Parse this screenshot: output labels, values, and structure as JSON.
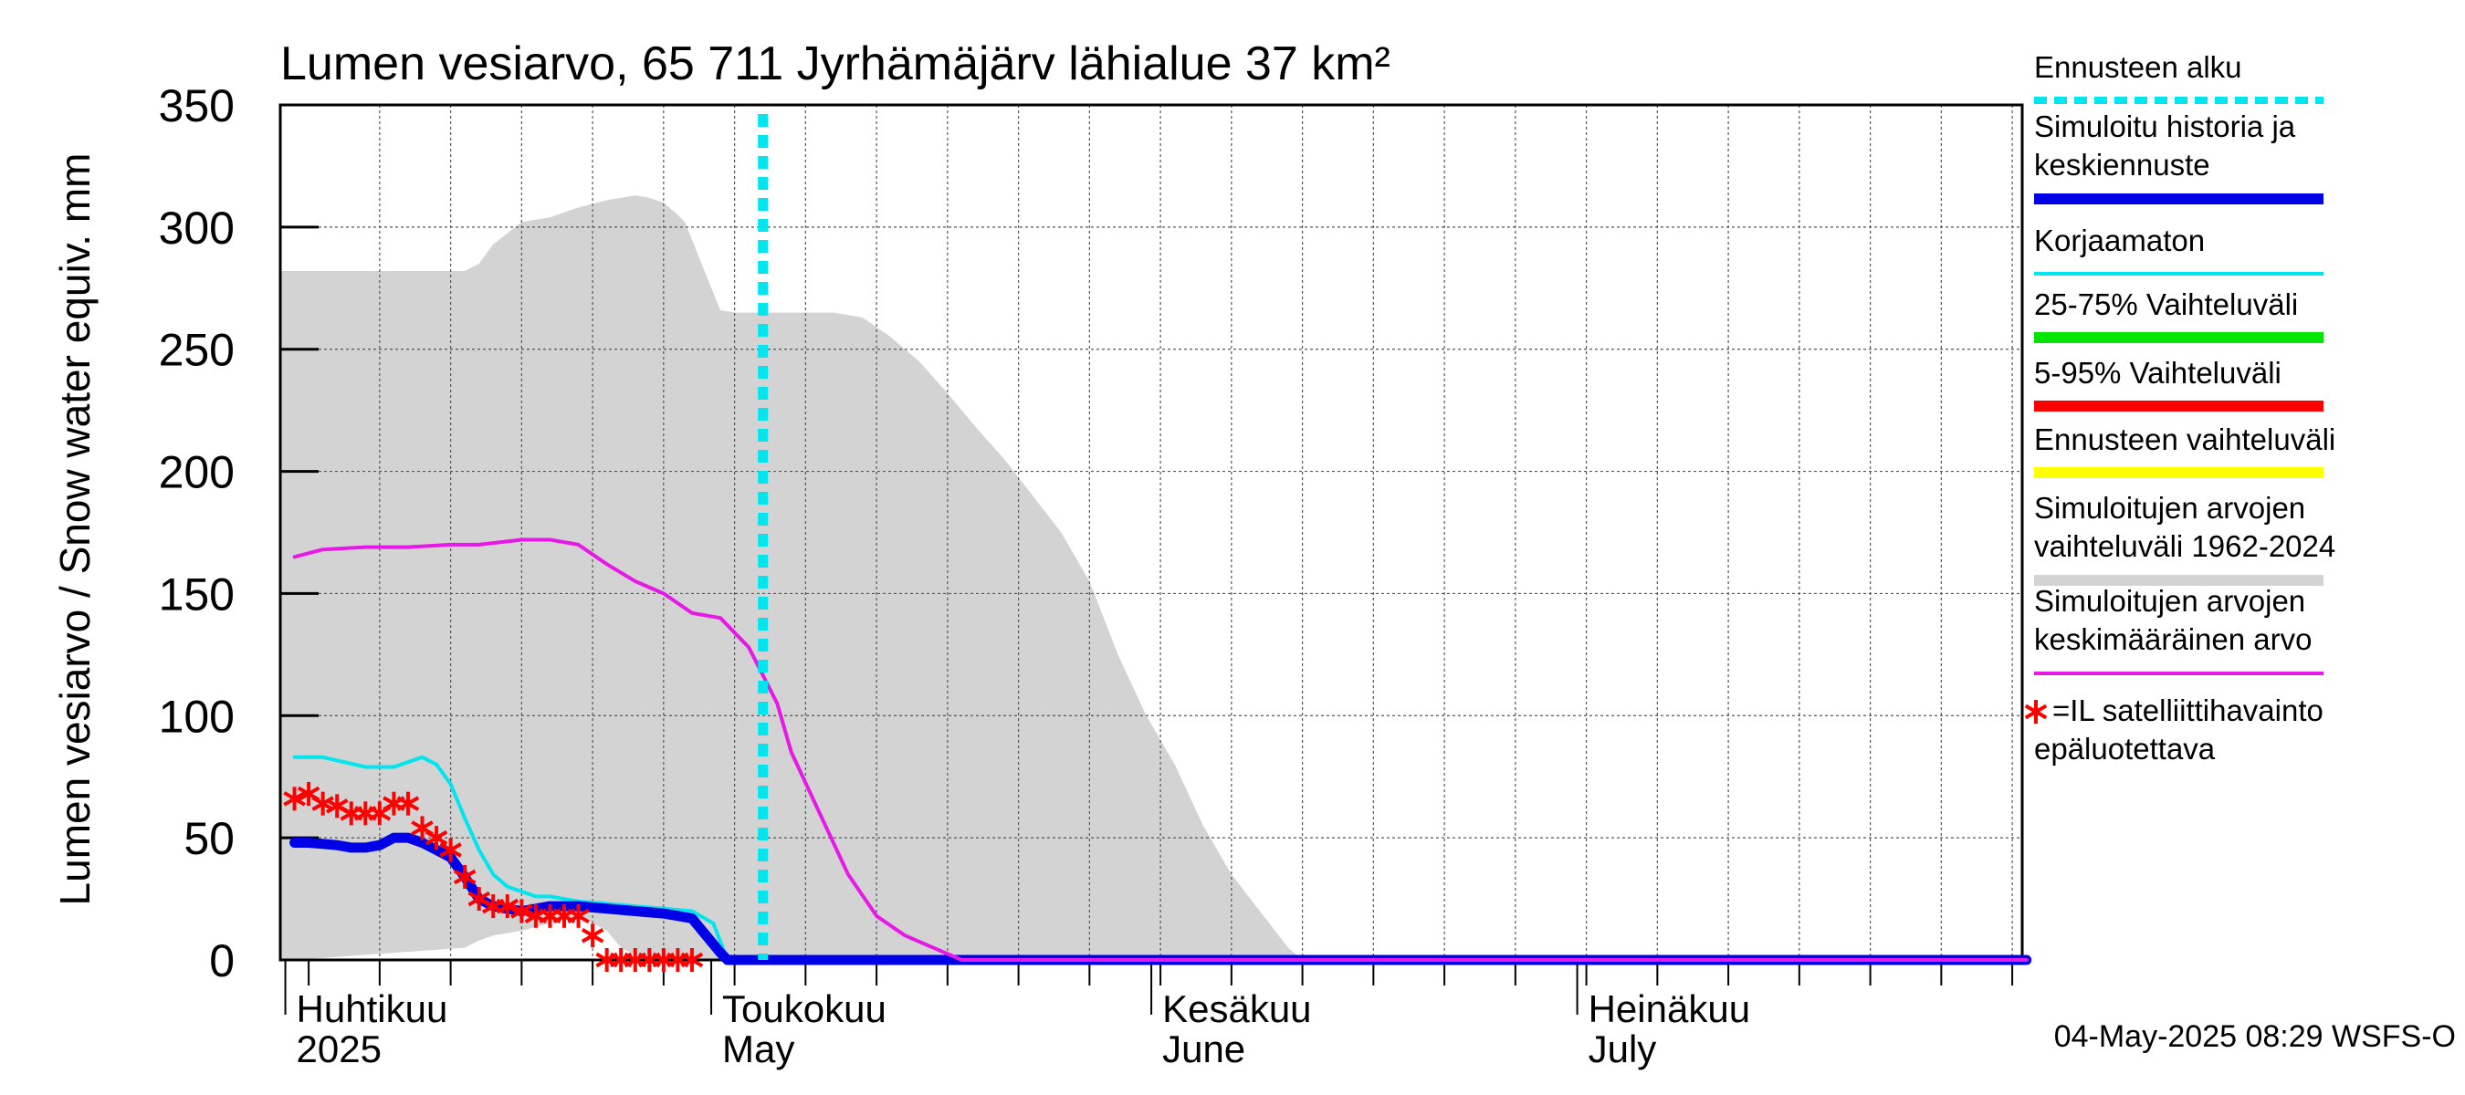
{
  "chart_data": {
    "type": "line",
    "title": "Lumen vesiarvo, 65 711 Jyrhämäjärv lähialue 37 km²",
    "ylabel": "Lumen vesiarvo / Snow water equiv.    mm",
    "ylim": [
      0,
      350
    ],
    "y_ticks": [
      0,
      50,
      100,
      150,
      200,
      250,
      300,
      350
    ],
    "x_range_days": [
      0,
      122
    ],
    "x_labels": [
      {
        "day": 0,
        "line1": "Huhtikuu",
        "line2": "2025"
      },
      {
        "day": 30,
        "line1": "Toukokuu",
        "line2": "May"
      },
      {
        "day": 61,
        "line1": "Kesäkuu",
        "line2": "June"
      },
      {
        "day": 91,
        "line1": "Heinäkuu",
        "line2": "July"
      }
    ],
    "forecast_start_day": 33,
    "series": [
      {
        "name": "Simuloitujen arvojen vaihteluväli 1962-2024",
        "color": "#d3d3d3",
        "kind": "band",
        "x": [
          -1,
          0,
          12,
          13,
          14,
          16,
          18,
          20,
          22,
          23,
          24,
          25,
          26,
          27,
          27.5,
          30,
          31,
          32,
          34,
          36,
          38,
          40,
          42,
          44,
          46,
          48,
          50,
          52,
          54,
          56,
          57,
          58,
          60,
          62,
          64,
          66,
          68,
          70,
          71,
          72,
          122
        ],
        "upper": [
          282,
          282,
          282,
          285,
          293,
          302,
          304,
          308,
          311,
          312,
          313,
          312,
          310,
          305,
          302,
          266,
          265,
          265,
          265,
          265,
          265,
          263,
          255,
          245,
          232,
          218,
          205,
          190,
          175,
          155,
          140,
          125,
          100,
          80,
          55,
          35,
          20,
          5,
          0,
          0,
          0
        ],
        "lower": [
          0,
          0,
          5,
          8,
          10,
          12,
          15,
          18,
          12,
          5,
          2,
          0,
          0,
          0,
          0,
          0,
          0,
          0,
          0,
          0,
          0,
          0,
          0,
          0,
          0,
          0,
          0,
          0,
          0,
          0,
          0,
          0,
          0,
          0,
          0,
          0,
          0,
          0,
          0,
          0,
          0
        ]
      },
      {
        "name": "Simuloitujen arvojen keskimääräinen arvo",
        "color": "#e619e6",
        "x": [
          0,
          2,
          5,
          8,
          11,
          13,
          16,
          18,
          20,
          22,
          24,
          26,
          28,
          30,
          32,
          34,
          35,
          37,
          39,
          41,
          43,
          45,
          47,
          48,
          122
        ],
        "values": [
          165,
          168,
          169,
          169,
          170,
          170,
          172,
          172,
          170,
          162,
          155,
          150,
          142,
          140,
          128,
          105,
          85,
          60,
          35,
          18,
          10,
          5,
          0,
          0,
          0
        ]
      },
      {
        "name": "Korjaamaton",
        "color": "#00e5ee",
        "x": [
          0,
          2,
          5,
          7,
          9,
          10,
          11,
          12,
          13,
          14,
          15,
          16,
          17,
          18,
          19,
          20,
          22,
          24,
          26,
          28,
          29.5,
          30.5,
          122
        ],
        "values": [
          83,
          83,
          79,
          79,
          83,
          80,
          72,
          58,
          45,
          35,
          30,
          28,
          26,
          26,
          25,
          24,
          23,
          22,
          21,
          20,
          15,
          0,
          0
        ]
      },
      {
        "name": "Simuloitu historia ja keskiennuste",
        "color": "#0000e6",
        "x": [
          0,
          1,
          3,
          4,
          5,
          6,
          7,
          8,
          9,
          10,
          11,
          12,
          13,
          14,
          15,
          16,
          17,
          18,
          20,
          22,
          24,
          26,
          28,
          29,
          30,
          30.5,
          122
        ],
        "values": [
          48,
          48,
          47,
          46,
          46,
          47,
          50,
          50,
          48,
          45,
          42,
          34,
          25,
          22,
          21,
          20,
          21,
          22,
          22,
          21,
          20,
          19,
          17,
          10,
          3,
          0,
          0
        ]
      }
    ],
    "satellite_points": {
      "name": "=IL satelliittihavainto epäluotettava",
      "color": "#ff0000",
      "x": [
        0,
        1,
        2,
        3,
        4,
        5,
        6,
        7,
        8,
        9,
        10,
        11,
        12,
        13,
        14,
        15,
        16,
        17,
        18,
        19,
        20,
        21,
        22,
        23,
        24,
        25,
        26,
        27,
        28
      ],
      "values": [
        66,
        68,
        64,
        63,
        60,
        60,
        60,
        64,
        64,
        54,
        50,
        45,
        34,
        25,
        22,
        22,
        20,
        18,
        18,
        18,
        18,
        10,
        0,
        0,
        0,
        0,
        0,
        0,
        0
      ]
    },
    "legend": [
      {
        "label": "Ennusteen alku",
        "color": "#00e5ee",
        "style": "dotted"
      },
      {
        "label": "Simuloitu historia ja",
        "label2": "keskiennuste",
        "color": "#0000e6",
        "style": "thick"
      },
      {
        "label": "Korjaamaton",
        "color": "#00e5ee",
        "style": "thin"
      },
      {
        "label": "25-75% Vaihteluväli",
        "color": "#00e600",
        "style": "thick"
      },
      {
        "label": "5-95% Vaihteluväli",
        "color": "#ff0000",
        "style": "thick"
      },
      {
        "label": "Ennusteen vaihteluväli",
        "color": "#ffff00",
        "style": "thick"
      },
      {
        "label": "Simuloitujen arvojen",
        "label2": "vaihteluväli 1962-2024",
        "color": "#d3d3d3",
        "style": "thick"
      },
      {
        "label": "Simuloitujen arvojen",
        "label2": "keskimääräinen arvo",
        "color": "#e619e6",
        "style": "thin"
      },
      {
        "label": "=IL satelliittihavainto",
        "label2": "epäluotettava",
        "color": "#ff0000",
        "style": "star"
      }
    ],
    "footer": "04-May-2025 08:29 WSFS-O"
  }
}
